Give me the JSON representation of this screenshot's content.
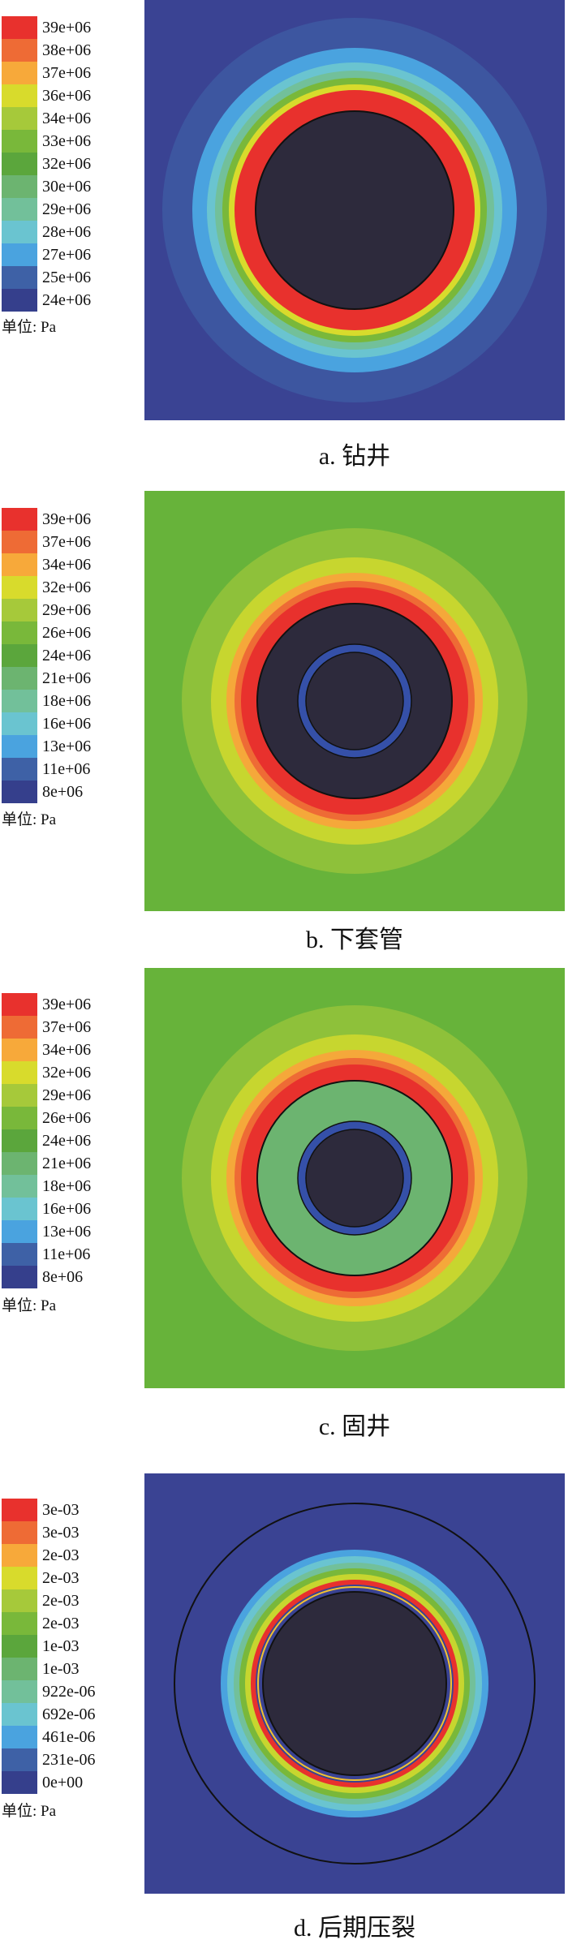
{
  "panels": [
    {
      "caption": "a. 钻井",
      "unit_label": "单位: Pa",
      "legend": [
        {
          "label": "39e+06",
          "color": "#e8312d"
        },
        {
          "label": "38e+06",
          "color": "#ee6b35"
        },
        {
          "label": "37e+06",
          "color": "#f7a93a"
        },
        {
          "label": "36e+06",
          "color": "#d8db2c"
        },
        {
          "label": "34e+06",
          "color": "#a6c93a"
        },
        {
          "label": "33e+06",
          "color": "#79b83a"
        },
        {
          "label": "32e+06",
          "color": "#5ba63c"
        },
        {
          "label": "30e+06",
          "color": "#6cb470"
        },
        {
          "label": "29e+06",
          "color": "#72c09a"
        },
        {
          "label": "28e+06",
          "color": "#6ac4d0"
        },
        {
          "label": "27e+06",
          "color": "#4aa3df"
        },
        {
          "label": "25e+06",
          "color": "#3e61a6"
        },
        {
          "label": "24e+06",
          "color": "#353f8c"
        }
      ],
      "plot": {
        "background": "#3a4393",
        "bands": [
          "#3d56a0",
          "#4aa3df",
          "#6ac4d0",
          "#72c09a",
          "#79b83a",
          "#d8db2c",
          "#e8312d"
        ],
        "core_color": "#2d2a3c",
        "inner_ring": false,
        "outer_line": false
      }
    },
    {
      "caption": "b. 下套管",
      "unit_label": "单位: Pa",
      "legend": [
        {
          "label": "39e+06",
          "color": "#e8312d"
        },
        {
          "label": "37e+06",
          "color": "#ee6b35"
        },
        {
          "label": "34e+06",
          "color": "#f7a93a"
        },
        {
          "label": "32e+06",
          "color": "#d8db2c"
        },
        {
          "label": "29e+06",
          "color": "#a6c93a"
        },
        {
          "label": "26e+06",
          "color": "#79b83a"
        },
        {
          "label": "24e+06",
          "color": "#5ba63c"
        },
        {
          "label": "21e+06",
          "color": "#6cb470"
        },
        {
          "label": "18e+06",
          "color": "#72c09a"
        },
        {
          "label": "16e+06",
          "color": "#6ac4d0"
        },
        {
          "label": "13e+06",
          "color": "#4aa3df"
        },
        {
          "label": "11e+06",
          "color": "#3e61a6"
        },
        {
          "label": "8e+06",
          "color": "#353f8c"
        }
      ],
      "plot": {
        "background": "#67b33a",
        "bands": [
          "#8ec13a",
          "#c7d62f",
          "#f5a83a",
          "#ee6b35",
          "#e8312d"
        ],
        "core_color": "#2d2a3c",
        "inner_ring": true,
        "ring_fill": "#2d2a3c",
        "outer_line": false
      }
    },
    {
      "caption": "c. 固井",
      "unit_label": "单位: Pa",
      "legend": [
        {
          "label": "39e+06",
          "color": "#e8312d"
        },
        {
          "label": "37e+06",
          "color": "#ee6b35"
        },
        {
          "label": "34e+06",
          "color": "#f7a93a"
        },
        {
          "label": "32e+06",
          "color": "#d8db2c"
        },
        {
          "label": "29e+06",
          "color": "#a6c93a"
        },
        {
          "label": "26e+06",
          "color": "#79b83a"
        },
        {
          "label": "24e+06",
          "color": "#5ba63c"
        },
        {
          "label": "21e+06",
          "color": "#6cb470"
        },
        {
          "label": "18e+06",
          "color": "#72c09a"
        },
        {
          "label": "16e+06",
          "color": "#6ac4d0"
        },
        {
          "label": "13e+06",
          "color": "#4aa3df"
        },
        {
          "label": "11e+06",
          "color": "#3e61a6"
        },
        {
          "label": "8e+06",
          "color": "#353f8c"
        }
      ],
      "plot": {
        "background": "#67b33a",
        "bands": [
          "#8ec13a",
          "#c7d62f",
          "#f5a83a",
          "#ee6b35",
          "#e8312d"
        ],
        "core_color": "#6cb470",
        "inner_ring": true,
        "ring_fill": "#2d2a3c",
        "outer_line": false
      }
    },
    {
      "caption": "d. 后期压裂",
      "unit_label": "单位: Pa",
      "legend": [
        {
          "label": "3e-03",
          "color": "#e8312d"
        },
        {
          "label": "3e-03",
          "color": "#ee6b35"
        },
        {
          "label": "2e-03",
          "color": "#f7a93a"
        },
        {
          "label": "2e-03",
          "color": "#d8db2c"
        },
        {
          "label": "2e-03",
          "color": "#a6c93a"
        },
        {
          "label": "2e-03",
          "color": "#79b83a"
        },
        {
          "label": "1e-03",
          "color": "#5ba63c"
        },
        {
          "label": "1e-03",
          "color": "#6cb470"
        },
        {
          "label": "922e-06",
          "color": "#72c09a"
        },
        {
          "label": "692e-06",
          "color": "#6ac4d0"
        },
        {
          "label": "461e-06",
          "color": "#4aa3df"
        },
        {
          "label": "231e-06",
          "color": "#3e61a6"
        },
        {
          "label": "0e+00",
          "color": "#353f8c"
        }
      ],
      "plot": {
        "background": "#3a4393",
        "bands": [
          "#4aa3df",
          "#6ac4d0",
          "#72c09a",
          "#79b83a",
          "#c7d62f",
          "#e8312d",
          "#3a4393"
        ],
        "core_color": "#2d2a3c",
        "inner_ring": false,
        "outer_line": true
      }
    }
  ]
}
